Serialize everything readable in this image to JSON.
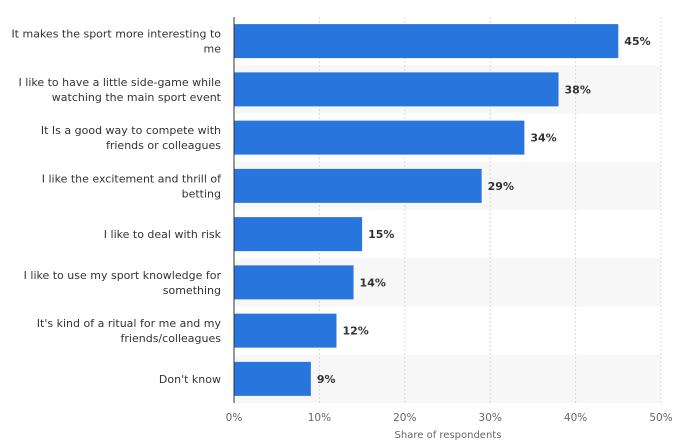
{
  "chart_data": {
    "type": "bar",
    "orientation": "horizontal",
    "categories": [
      [
        "It makes the sport more interesting to",
        "me"
      ],
      [
        "I like to have a little side-game while",
        "watching the main sport event"
      ],
      [
        "It Is a good way to compete with",
        "friends or colleagues"
      ],
      [
        "I like the excitement and thrill of",
        "betting"
      ],
      [
        "I like to deal with risk"
      ],
      [
        "I like to use my sport knowledge for",
        "something"
      ],
      [
        "It's kind of a ritual for me and my",
        "friends/colleagues"
      ],
      [
        "Don't know"
      ]
    ],
    "values": [
      45,
      38,
      34,
      29,
      15,
      14,
      12,
      9
    ],
    "value_labels": [
      "45%",
      "38%",
      "34%",
      "29%",
      "15%",
      "14%",
      "12%",
      "9%"
    ],
    "xlabel": "Share of respondents",
    "ylabel": "",
    "xlim": [
      0,
      50
    ],
    "xticks": [
      0,
      10,
      20,
      30,
      40,
      50
    ],
    "xtick_labels": [
      "0%",
      "10%",
      "20%",
      "30%",
      "40%",
      "50%"
    ],
    "grid": true,
    "legend": "none",
    "colors": {
      "bar": "#2876dd",
      "band": "#f7f7f7",
      "grid": "#d8d8d8",
      "axis": "#333333"
    }
  }
}
